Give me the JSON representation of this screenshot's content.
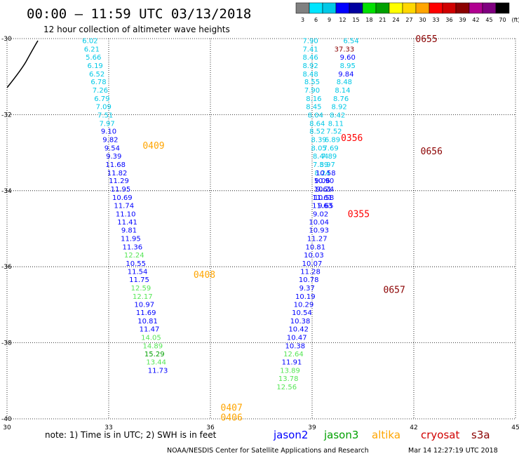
{
  "header": {
    "title": "00:00 – 11:59 UTC 03/13/2018",
    "subtitle": "12 hour collection of altimeter wave heights"
  },
  "legend": {
    "labels": [
      "3",
      "6",
      "9",
      "12",
      "15",
      "18",
      "21",
      "24",
      "27",
      "30",
      "33",
      "36",
      "39",
      "42",
      "45",
      "70",
      "(ft)"
    ],
    "colors": [
      "#808080",
      "#00e5ff",
      "#00c8e6",
      "#0000ff",
      "#0000a0",
      "#00e000",
      "#00a000",
      "#ffff00",
      "#ffd700",
      "#ffa500",
      "#ff0000",
      "#d00000",
      "#8b0000",
      "#b00090",
      "#800080",
      "#000000"
    ]
  },
  "footer": {
    "note": "note: 1) Time is in UTC; 2) SWH is in feet",
    "satellites": [
      {
        "name": "jason2",
        "color": "#0000ff"
      },
      {
        "name": "jason3",
        "color": "#00a000"
      },
      {
        "name": "altika",
        "color": "#ffa500"
      },
      {
        "name": "cryosat",
        "color": "#d00000"
      },
      {
        "name": "s3a",
        "color": "#8b0000"
      }
    ],
    "credit": "NOAA/NESDIS Center for Satellite Applications and Research",
    "timestamp": "Mar 14 12:27:19 UTC 2018"
  },
  "chart_data": {
    "type": "scatter",
    "xlim": [
      30,
      45
    ],
    "ylim": [
      -40,
      -30
    ],
    "xticks": [
      30,
      33,
      36,
      39,
      42,
      45
    ],
    "yticks": [
      -30,
      -32,
      -34,
      -36,
      -38,
      -40
    ],
    "grid": true,
    "unit": "ft",
    "passes": [
      {
        "label": "0409",
        "color": "#ffa500",
        "x": 34.0,
        "y": -32.8
      },
      {
        "label": "0408",
        "color": "#ffa500",
        "x": 35.5,
        "y": -36.2
      },
      {
        "label": "0407",
        "color": "#ffa500",
        "x": 36.3,
        "y": -39.7
      },
      {
        "label": "0406",
        "color": "#ffa500",
        "x": 36.3,
        "y": -39.95
      },
      {
        "label": "0356",
        "color": "#ff0000",
        "x": 39.85,
        "y": -32.6
      },
      {
        "label": "0355",
        "color": "#ff0000",
        "x": 40.05,
        "y": -34.6
      },
      {
        "label": "0655",
        "color": "#8b0000",
        "x": 42.05,
        "y": -30.0
      },
      {
        "label": "0656",
        "color": "#8b0000",
        "x": 42.2,
        "y": -32.95
      },
      {
        "label": "0657",
        "color": "#8b0000",
        "x": 41.1,
        "y": -36.6
      }
    ],
    "series": [
      {
        "name": "0406-0409",
        "points": [
          {
            "x": 32.45,
            "y": -30.05,
            "v": "6.02",
            "c": "#00c8e6"
          },
          {
            "x": 32.5,
            "y": -30.27,
            "v": "6.21",
            "c": "#00c8e6"
          },
          {
            "x": 32.55,
            "y": -30.48,
            "v": "5.66",
            "c": "#00c8e6"
          },
          {
            "x": 32.6,
            "y": -30.7,
            "v": "6.19",
            "c": "#00c8e6"
          },
          {
            "x": 32.65,
            "y": -30.92,
            "v": "6.52",
            "c": "#00c8e6"
          },
          {
            "x": 32.7,
            "y": -31.13,
            "v": "6.78",
            "c": "#00c8e6"
          },
          {
            "x": 32.75,
            "y": -31.35,
            "v": "7.26",
            "c": "#00c8e6"
          },
          {
            "x": 32.8,
            "y": -31.57,
            "v": "6.79",
            "c": "#00c8e6"
          },
          {
            "x": 32.85,
            "y": -31.78,
            "v": "7.09",
            "c": "#00c8e6"
          },
          {
            "x": 32.9,
            "y": -32.0,
            "v": "7.51",
            "c": "#00c8e6"
          },
          {
            "x": 32.95,
            "y": -32.22,
            "v": "7.97",
            "c": "#00c8e6"
          },
          {
            "x": 33.0,
            "y": -32.43,
            "v": "9.10",
            "c": "#0000ff"
          },
          {
            "x": 33.05,
            "y": -32.65,
            "v": "9.82",
            "c": "#0000ff"
          },
          {
            "x": 33.1,
            "y": -32.87,
            "v": "9.54",
            "c": "#0000ff"
          },
          {
            "x": 33.15,
            "y": -33.08,
            "v": "9.39",
            "c": "#0000ff"
          },
          {
            "x": 33.2,
            "y": -33.3,
            "v": "11.68",
            "c": "#0000ff"
          },
          {
            "x": 33.25,
            "y": -33.52,
            "v": "11.82",
            "c": "#0000ff"
          },
          {
            "x": 33.3,
            "y": -33.73,
            "v": "11.29",
            "c": "#0000ff"
          },
          {
            "x": 33.35,
            "y": -33.95,
            "v": "11.95",
            "c": "#0000ff"
          },
          {
            "x": 33.4,
            "y": -34.17,
            "v": "10.69",
            "c": "#0000ff"
          },
          {
            "x": 33.45,
            "y": -34.38,
            "v": "11.74",
            "c": "#0000ff"
          },
          {
            "x": 33.5,
            "y": -34.6,
            "v": "11.10",
            "c": "#0000ff"
          },
          {
            "x": 33.55,
            "y": -34.82,
            "v": "11.41",
            "c": "#0000ff"
          },
          {
            "x": 33.6,
            "y": -35.03,
            "v": "9.81",
            "c": "#0000ff"
          },
          {
            "x": 33.65,
            "y": -35.25,
            "v": "11.95",
            "c": "#0000ff"
          },
          {
            "x": 33.7,
            "y": -35.47,
            "v": "11.36",
            "c": "#0000ff"
          },
          {
            "x": 33.75,
            "y": -35.68,
            "v": "12.24",
            "c": "#55e655"
          },
          {
            "x": 33.8,
            "y": -35.9,
            "v": "10.55",
            "c": "#0000ff"
          },
          {
            "x": 33.85,
            "y": -36.12,
            "v": "11.54",
            "c": "#0000ff"
          },
          {
            "x": 33.9,
            "y": -36.33,
            "v": "11.75",
            "c": "#0000ff"
          },
          {
            "x": 33.95,
            "y": -36.55,
            "v": "12.59",
            "c": "#55e655"
          },
          {
            "x": 34.0,
            "y": -36.77,
            "v": "12.17",
            "c": "#55e655"
          },
          {
            "x": 34.05,
            "y": -36.98,
            "v": "10.97",
            "c": "#0000ff"
          },
          {
            "x": 34.1,
            "y": -37.2,
            "v": "11.69",
            "c": "#0000ff"
          },
          {
            "x": 34.15,
            "y": -37.42,
            "v": "10.81",
            "c": "#0000ff"
          },
          {
            "x": 34.2,
            "y": -37.63,
            "v": "11.47",
            "c": "#0000ff"
          },
          {
            "x": 34.25,
            "y": -37.85,
            "v": "14.05",
            "c": "#55e655"
          },
          {
            "x": 34.3,
            "y": -38.07,
            "v": "14.89",
            "c": "#55e655"
          },
          {
            "x": 34.35,
            "y": -38.28,
            "v": "15.29",
            "c": "#00a000"
          },
          {
            "x": 34.4,
            "y": -38.5,
            "v": "13.44",
            "c": "#55e655"
          },
          {
            "x": 34.45,
            "y": -38.72,
            "v": "11.73",
            "c": "#0000ff"
          }
        ]
      },
      {
        "name": "0355-0356",
        "points": [
          {
            "x": 38.95,
            "y": -30.05,
            "v": "7.90",
            "c": "#00c8e6"
          },
          {
            "x": 38.95,
            "y": -30.27,
            "v": "7.41",
            "c": "#00c8e6"
          },
          {
            "x": 38.95,
            "y": -30.48,
            "v": "8.46",
            "c": "#00c8e6"
          },
          {
            "x": 38.95,
            "y": -30.7,
            "v": "8.92",
            "c": "#00c8e6"
          },
          {
            "x": 38.95,
            "y": -30.92,
            "v": "8.48",
            "c": "#00c8e6"
          },
          {
            "x": 39.0,
            "y": -31.13,
            "v": "8.55",
            "c": "#00c8e6"
          },
          {
            "x": 39.0,
            "y": -31.35,
            "v": "7.90",
            "c": "#00c8e6"
          },
          {
            "x": 39.05,
            "y": -31.57,
            "v": "8.16",
            "c": "#00c8e6"
          },
          {
            "x": 39.05,
            "y": -31.78,
            "v": "8.45",
            "c": "#00c8e6"
          },
          {
            "x": 39.1,
            "y": -32.0,
            "v": "8.04",
            "c": "#00c8e6"
          },
          {
            "x": 39.15,
            "y": -32.22,
            "v": "8.64",
            "c": "#00c8e6"
          },
          {
            "x": 39.15,
            "y": -32.43,
            "v": "8.52",
            "c": "#00c8e6"
          },
          {
            "x": 39.2,
            "y": -32.65,
            "v": "8.39",
            "c": "#00c8e6"
          },
          {
            "x": 39.2,
            "y": -32.87,
            "v": "8.05",
            "c": "#00c8e6"
          },
          {
            "x": 39.25,
            "y": -33.08,
            "v": "8.44",
            "c": "#00c8e6"
          },
          {
            "x": 39.25,
            "y": -33.3,
            "v": "7.59",
            "c": "#00c8e6"
          },
          {
            "x": 39.3,
            "y": -33.52,
            "v": "8.24",
            "c": "#00c8e6"
          },
          {
            "x": 39.3,
            "y": -33.73,
            "v": "9.06",
            "c": "#0000ff"
          },
          {
            "x": 39.35,
            "y": -33.95,
            "v": "10.24",
            "c": "#0000ff"
          },
          {
            "x": 39.35,
            "y": -34.17,
            "v": "10.58",
            "c": "#0000ff"
          },
          {
            "x": 39.4,
            "y": -34.38,
            "v": "9.65",
            "c": "#0000ff"
          },
          {
            "x": 40.15,
            "y": -30.05,
            "v": "6.54",
            "c": "#00c8e6"
          },
          {
            "x": 39.95,
            "y": -30.27,
            "v": "37.33",
            "c": "#8b0000"
          },
          {
            "x": 40.05,
            "y": -30.48,
            "v": "9.60",
            "c": "#0000ff"
          },
          {
            "x": 40.05,
            "y": -30.7,
            "v": "8.95",
            "c": "#00c8e6"
          },
          {
            "x": 40.0,
            "y": -30.92,
            "v": "9.84",
            "c": "#0000ff"
          },
          {
            "x": 39.95,
            "y": -31.13,
            "v": "8.48",
            "c": "#00c8e6"
          },
          {
            "x": 39.9,
            "y": -31.35,
            "v": "8.14",
            "c": "#00c8e6"
          },
          {
            "x": 39.85,
            "y": -31.57,
            "v": "8.76",
            "c": "#00c8e6"
          },
          {
            "x": 39.8,
            "y": -31.78,
            "v": "8.92",
            "c": "#00c8e6"
          },
          {
            "x": 39.75,
            "y": -32.0,
            "v": "8.42",
            "c": "#00c8e6"
          },
          {
            "x": 39.7,
            "y": -32.22,
            "v": "8.11",
            "c": "#00c8e6"
          },
          {
            "x": 39.65,
            "y": -32.43,
            "v": "7.52",
            "c": "#00c8e6"
          },
          {
            "x": 39.6,
            "y": -32.65,
            "v": "6.89",
            "c": "#00c8e6"
          },
          {
            "x": 39.55,
            "y": -32.87,
            "v": "7.69",
            "c": "#00c8e6"
          },
          {
            "x": 39.5,
            "y": -33.08,
            "v": "7.89",
            "c": "#00c8e6"
          },
          {
            "x": 39.45,
            "y": -33.3,
            "v": "8.97",
            "c": "#00c8e6"
          },
          {
            "x": 39.4,
            "y": -33.52,
            "v": "10.58",
            "c": "#0000ff"
          },
          {
            "x": 39.35,
            "y": -33.73,
            "v": "10.90",
            "c": "#0000ff"
          }
        ]
      },
      {
        "name": "0655-0657",
        "points": [
          {
            "x": 39.35,
            "y": -33.95,
            "v": "9.61",
            "c": "#0000ff"
          },
          {
            "x": 39.3,
            "y": -34.17,
            "v": "11.61",
            "c": "#0000ff"
          },
          {
            "x": 39.3,
            "y": -34.38,
            "v": "11.63",
            "c": "#0000ff"
          },
          {
            "x": 39.25,
            "y": -34.6,
            "v": "9.02",
            "c": "#0000ff"
          },
          {
            "x": 39.2,
            "y": -34.82,
            "v": "10.04",
            "c": "#0000ff"
          },
          {
            "x": 39.2,
            "y": -35.03,
            "v": "10.93",
            "c": "#0000ff"
          },
          {
            "x": 39.15,
            "y": -35.25,
            "v": "11.27",
            "c": "#0000ff"
          },
          {
            "x": 39.1,
            "y": -35.47,
            "v": "10.81",
            "c": "#0000ff"
          },
          {
            "x": 39.05,
            "y": -35.68,
            "v": "10.03",
            "c": "#0000ff"
          },
          {
            "x": 39.0,
            "y": -35.9,
            "v": "10.07",
            "c": "#0000ff"
          },
          {
            "x": 38.95,
            "y": -36.12,
            "v": "11.28",
            "c": "#0000ff"
          },
          {
            "x": 38.9,
            "y": -36.33,
            "v": "10.78",
            "c": "#0000ff"
          },
          {
            "x": 38.85,
            "y": -36.55,
            "v": "9.37",
            "c": "#0000ff"
          },
          {
            "x": 38.8,
            "y": -36.77,
            "v": "10.19",
            "c": "#0000ff"
          },
          {
            "x": 38.75,
            "y": -36.98,
            "v": "10.29",
            "c": "#0000ff"
          },
          {
            "x": 38.7,
            "y": -37.2,
            "v": "10.54",
            "c": "#0000ff"
          },
          {
            "x": 38.65,
            "y": -37.42,
            "v": "10.38",
            "c": "#0000ff"
          },
          {
            "x": 38.6,
            "y": -37.63,
            "v": "10.42",
            "c": "#0000ff"
          },
          {
            "x": 38.55,
            "y": -37.85,
            "v": "10.47",
            "c": "#0000ff"
          },
          {
            "x": 38.5,
            "y": -38.07,
            "v": "10.38",
            "c": "#0000ff"
          },
          {
            "x": 38.45,
            "y": -38.28,
            "v": "12.64",
            "c": "#55e655"
          },
          {
            "x": 38.4,
            "y": -38.5,
            "v": "11.91",
            "c": "#0000ff"
          },
          {
            "x": 38.35,
            "y": -38.72,
            "v": "13.89",
            "c": "#55e655"
          },
          {
            "x": 38.3,
            "y": -38.93,
            "v": "13.78",
            "c": "#55e655"
          },
          {
            "x": 38.25,
            "y": -39.15,
            "v": "12.56",
            "c": "#55e655"
          }
        ]
      }
    ]
  }
}
